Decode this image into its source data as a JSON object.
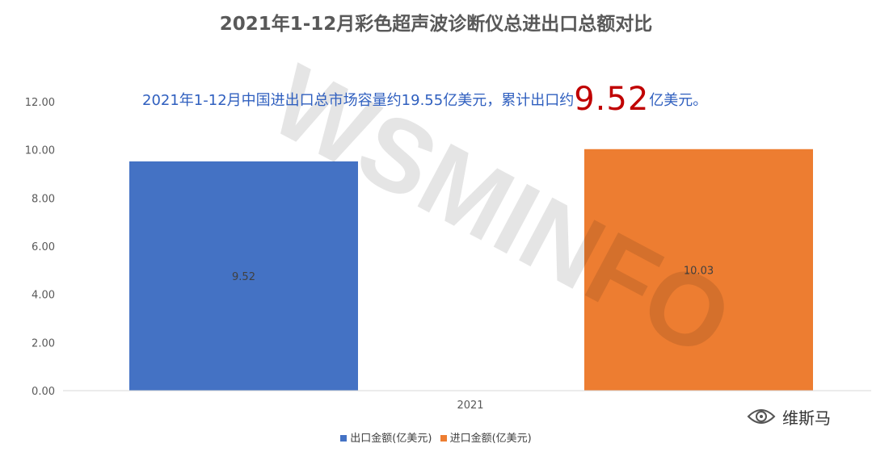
{
  "header": {
    "title": "2021年1-12月彩色超声波诊断仪总进出口总额对比"
  },
  "annotation": {
    "text_before": "2021年1-12月中国进出口总市场容量约19.55亿美元，累计出口约",
    "highlight": "9.52",
    "text_after": "亿美元。"
  },
  "watermark": "WSMINFO",
  "brand": {
    "name": "维斯马",
    "logo_icon": "wechat-eye-logo-icon"
  },
  "chart_data": {
    "type": "bar",
    "categories": [
      "2021"
    ],
    "series": [
      {
        "name": "出口金额(亿美元)",
        "values": [
          9.52
        ],
        "color": "#4472c4",
        "label": "9.52"
      },
      {
        "name": "进口金额(亿美元)",
        "values": [
          10.03
        ],
        "color": "#ed7d31",
        "label": "10.03"
      }
    ],
    "ylim": [
      0,
      12
    ],
    "yticks": [
      "0.00",
      "2.00",
      "4.00",
      "6.00",
      "8.00",
      "10.00",
      "12.00"
    ],
    "grid": false,
    "legend_position": "bottom"
  }
}
